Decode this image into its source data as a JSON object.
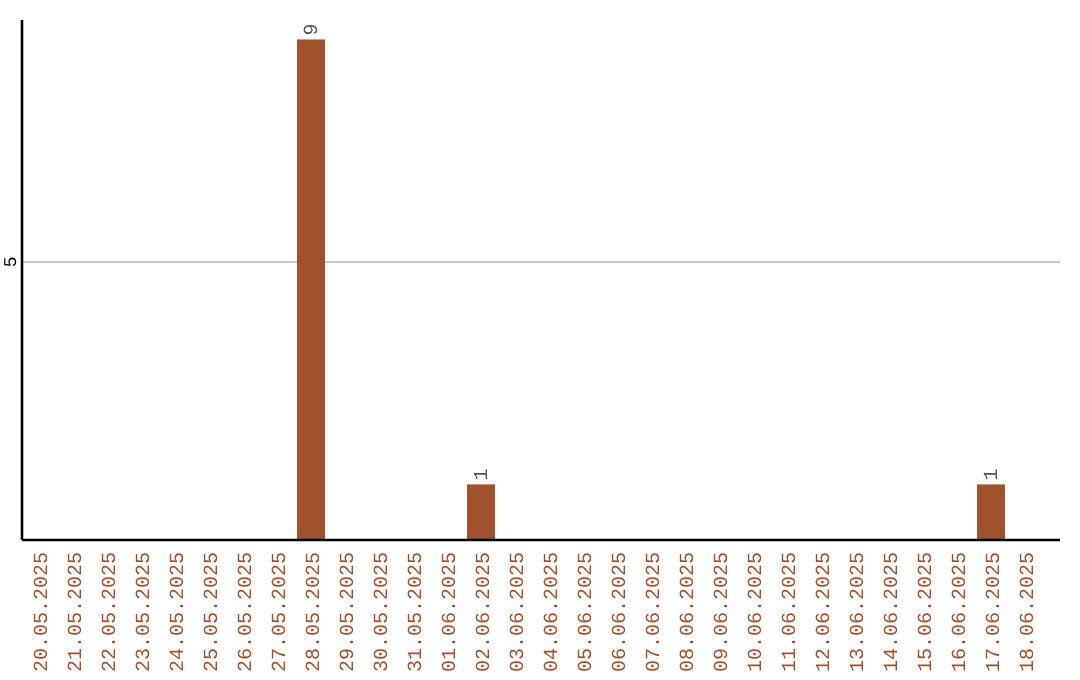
{
  "chart_data": {
    "type": "bar",
    "categories": [
      "20.05.2025",
      "21.05.2025",
      "22.05.2025",
      "23.05.2025",
      "24.05.2025",
      "25.05.2025",
      "26.05.2025",
      "27.05.2025",
      "28.05.2025",
      "29.05.2025",
      "30.05.2025",
      "31.05.2025",
      "01.06.2025",
      "02.06.2025",
      "03.06.2025",
      "04.06.2025",
      "05.06.2025",
      "06.06.2025",
      "07.06.2025",
      "08.06.2025",
      "09.06.2025",
      "10.06.2025",
      "11.06.2025",
      "12.06.2025",
      "13.06.2025",
      "14.06.2025",
      "15.06.2025",
      "16.06.2025",
      "17.06.2025",
      "18.06.2025"
    ],
    "values": [
      0,
      0,
      0,
      0,
      0,
      0,
      0,
      0,
      9,
      0,
      0,
      0,
      0,
      1,
      0,
      0,
      0,
      0,
      0,
      0,
      0,
      0,
      0,
      0,
      0,
      0,
      0,
      0,
      1,
      0
    ],
    "value_labels": [
      null,
      null,
      null,
      null,
      null,
      null,
      null,
      null,
      "9",
      null,
      null,
      null,
      null,
      "1",
      null,
      null,
      null,
      null,
      null,
      null,
      null,
      null,
      null,
      null,
      null,
      null,
      null,
      null,
      "1",
      null
    ],
    "color": "#a0522d",
    "ylim": [
      0,
      9.35
    ],
    "yticks": [
      5
    ],
    "grid": "y"
  }
}
